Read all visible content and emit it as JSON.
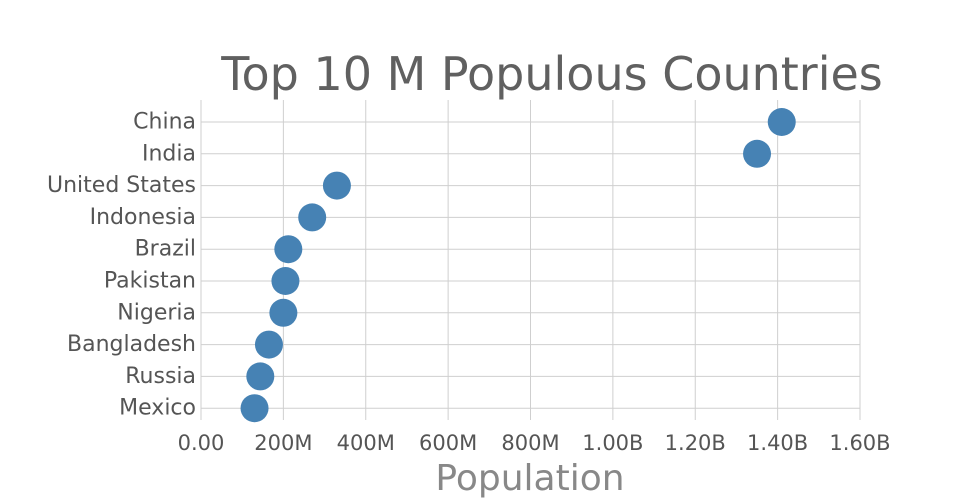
{
  "chart_data": {
    "type": "scatter",
    "title": "Top 10 M Populous Countries",
    "xlabel": "Population",
    "ylabel": "",
    "categories": [
      "China",
      "India",
      "United States",
      "Indonesia",
      "Brazil",
      "Pakistan",
      "Nigeria",
      "Bangladesh",
      "Russia",
      "Mexico"
    ],
    "values": [
      1410000000,
      1350000000,
      330000000,
      270000000,
      212000000,
      205000000,
      200000000,
      165000000,
      144000000,
      130000000
    ],
    "xlim": [
      0,
      1600000000
    ],
    "x_ticks": [
      0,
      200000000,
      400000000,
      600000000,
      800000000,
      1000000000,
      1200000000,
      1400000000,
      1600000000
    ],
    "x_tick_labels": [
      "0.00",
      "200M",
      "400M",
      "600M",
      "800M",
      "1.00B",
      "1.20B",
      "1.40B",
      "1.60B"
    ],
    "grid": true,
    "legend": "none",
    "colors": {
      "marker": "#4682b4",
      "grid": "#cfcfcf"
    }
  }
}
